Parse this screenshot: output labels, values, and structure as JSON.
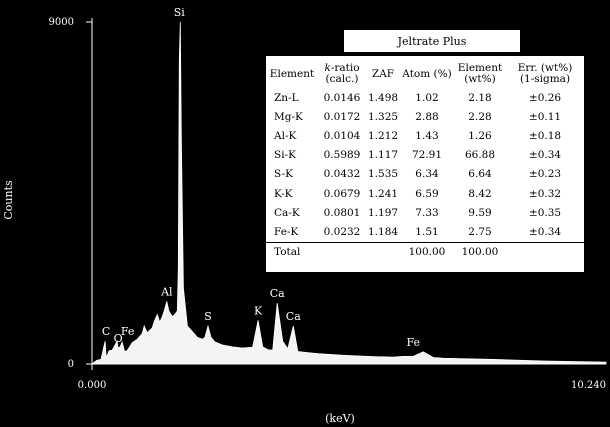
{
  "chart_data": {
    "type": "area",
    "xlabel": "(keV)",
    "ylabel": "Counts",
    "xlim": [
      0.0,
      10.24
    ],
    "ylim": [
      0,
      9000
    ],
    "x_tick_labels": [
      "0.000",
      "10.240"
    ],
    "y_tick_labels": [
      "0",
      "9000"
    ],
    "series": [
      {
        "x": [
          0.0,
          0.1,
          0.18,
          0.26,
          0.28,
          0.3,
          0.34,
          0.4,
          0.5,
          0.52,
          0.56,
          0.6,
          0.65,
          0.7,
          0.75,
          0.8,
          0.9,
          1.0,
          1.04,
          1.1,
          1.2,
          1.25,
          1.3,
          1.35,
          1.4,
          1.45,
          1.49,
          1.53,
          1.6,
          1.65,
          1.7,
          1.72,
          1.74,
          1.76,
          1.78,
          1.82,
          1.9,
          2.0,
          2.1,
          2.2,
          2.25,
          2.31,
          2.37,
          2.45,
          2.6,
          2.8,
          3.0,
          3.2,
          3.31,
          3.4,
          3.5,
          3.6,
          3.69,
          3.8,
          3.9,
          4.01,
          4.1,
          4.3,
          4.5,
          5.0,
          5.5,
          6.0,
          6.2,
          6.4,
          6.6,
          6.8,
          7.0,
          8.0,
          9.0,
          10.24
        ],
        "y": [
          0,
          100,
          120,
          600,
          200,
          220,
          350,
          360,
          600,
          420,
          450,
          580,
          330,
          350,
          450,
          560,
          650,
          800,
          1000,
          820,
          950,
          1150,
          1300,
          1100,
          1250,
          1450,
          1650,
          1400,
          1250,
          1300,
          1400,
          2500,
          8000,
          9000,
          6000,
          2000,
          1000,
          850,
          700,
          650,
          700,
          1000,
          700,
          580,
          500,
          450,
          420,
          440,
          1150,
          450,
          380,
          360,
          1600,
          600,
          400,
          1000,
          330,
          300,
          270,
          230,
          200,
          180,
          200,
          200,
          320,
          170,
          150,
          120,
          80,
          50
        ]
      }
    ],
    "peak_labels": [
      {
        "label": "C",
        "x": 0.28,
        "y": 600
      },
      {
        "label": "O",
        "x": 0.52,
        "y": 420
      },
      {
        "label": "Fe",
        "x": 0.71,
        "y": 600
      },
      {
        "label": "Al",
        "x": 1.49,
        "y": 1650
      },
      {
        "label": "Si",
        "x": 1.74,
        "y": 9000
      },
      {
        "label": "S",
        "x": 2.31,
        "y": 1000
      },
      {
        "label": "K",
        "x": 3.31,
        "y": 1150
      },
      {
        "label": "Ca",
        "x": 3.69,
        "y": 1600
      },
      {
        "label": "Ca",
        "x": 4.01,
        "y": 1000
      },
      {
        "label": "Fe",
        "x": 6.4,
        "y": 320
      }
    ]
  },
  "table": {
    "title": "Jeltrate Plus",
    "headers": {
      "element": "Element",
      "k_ratio_italic": "k",
      "k_ratio_rest": "-ratio",
      "k_ratio_sub": "(calc.)",
      "zaf": "ZAF",
      "atom": "Atom (%)",
      "elem_line1": "Element",
      "elem_line2": "(wt%)",
      "err_line1": "Err. (wt%)",
      "err_line2": "(1-sigma)"
    },
    "rows": [
      {
        "element": "Zn-L",
        "k_ratio": "0.0146",
        "zaf": "1.498",
        "atom": "1.02",
        "wt": "2.18",
        "err": "±0.26"
      },
      {
        "element": "Mg-K",
        "k_ratio": "0.0172",
        "zaf": "1.325",
        "atom": "2.88",
        "wt": "2.28",
        "err": "±0.11"
      },
      {
        "element": "Al-K",
        "k_ratio": "0.0104",
        "zaf": "1.212",
        "atom": "1.43",
        "wt": "1.26",
        "err": "±0.18"
      },
      {
        "element": "Si-K",
        "k_ratio": "0.5989",
        "zaf": "1.117",
        "atom": "72.91",
        "wt": "66.88",
        "err": "±0.34"
      },
      {
        "element": "S-K",
        "k_ratio": "0.0432",
        "zaf": "1.535",
        "atom": "6.34",
        "wt": "6.64",
        "err": "±0.23"
      },
      {
        "element": "K-K",
        "k_ratio": "0.0679",
        "zaf": "1.241",
        "atom": "6.59",
        "wt": "8.42",
        "err": "±0.32"
      },
      {
        "element": "Ca-K",
        "k_ratio": "0.0801",
        "zaf": "1.197",
        "atom": "7.33",
        "wt": "9.59",
        "err": "±0.35"
      },
      {
        "element": "Fe-K",
        "k_ratio": "0.0232",
        "zaf": "1.184",
        "atom": "1.51",
        "wt": "2.75",
        "err": "±0.34"
      }
    ],
    "total": {
      "label": "Total",
      "atom": "100.00",
      "wt": "100.00"
    }
  }
}
